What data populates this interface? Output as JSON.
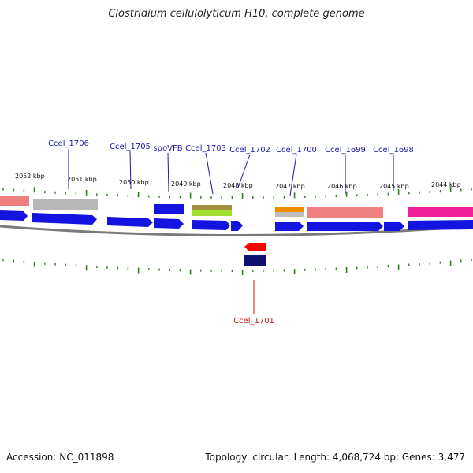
{
  "title": "Clostridium cellulolyticum H10, complete genome",
  "footer": {
    "accession": "Accession: NC_011898",
    "summary": "Topology: circular; Length: 4,068,724 bp; Genes: 3,477"
  },
  "scale_labels": [
    "2052 kbp",
    "2051 kbp",
    "2050 kbp",
    "2049 kbp",
    "2048 kbp",
    "2047 kbp",
    "2046 kbp",
    "2045 kbp",
    "2044 kbp"
  ],
  "gene_labels": [
    "Ccel_1706",
    "Ccel_1705",
    "spoVFB",
    "Ccel_1703",
    "Ccel_1702",
    "Ccel_1700",
    "Ccel_1699",
    "Ccel_1698",
    "Ccel_1701"
  ],
  "colors": {
    "forward_label": "#1a1aa8",
    "reverse_label": "#c81414",
    "forward_strand": "#1414e0",
    "reverse_strand_red": "#ff0000",
    "reverse_strand_navy": "#101070",
    "backbone": "#808080",
    "tick": "#2e7d1e",
    "salmon": "#f08080",
    "grey": "#b4b4b4",
    "olive": "#a09040",
    "lime": "#a0e030",
    "orange": "#f08c00",
    "magenta": "#f0209a"
  }
}
